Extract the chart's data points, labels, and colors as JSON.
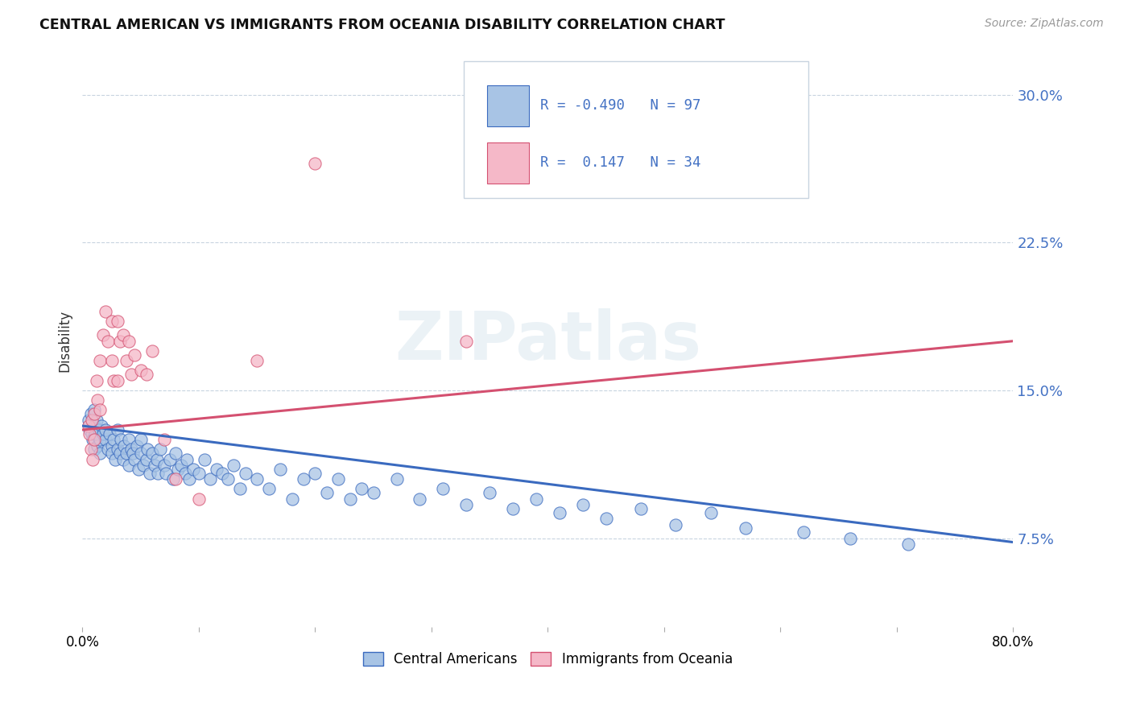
{
  "title": "CENTRAL AMERICAN VS IMMIGRANTS FROM OCEANIA DISABILITY CORRELATION CHART",
  "source": "Source: ZipAtlas.com",
  "ylabel": "Disability",
  "ytick_labels": [
    "7.5%",
    "15.0%",
    "22.5%",
    "30.0%"
  ],
  "ytick_values": [
    0.075,
    0.15,
    0.225,
    0.3
  ],
  "xlim": [
    0.0,
    0.8
  ],
  "ylim": [
    0.03,
    0.32
  ],
  "legend_blue_r": "-0.490",
  "legend_blue_n": "97",
  "legend_pink_r": "0.147",
  "legend_pink_n": "34",
  "blue_scatter_color": "#a8c4e5",
  "pink_scatter_color": "#f5b8c8",
  "blue_line_color": "#3a6abf",
  "pink_line_color": "#d45070",
  "watermark": "ZIPatlas",
  "blue_x": [
    0.005,
    0.006,
    0.007,
    0.008,
    0.009,
    0.01,
    0.01,
    0.01,
    0.011,
    0.012,
    0.013,
    0.014,
    0.015,
    0.015,
    0.016,
    0.018,
    0.02,
    0.02,
    0.022,
    0.023,
    0.025,
    0.025,
    0.027,
    0.028,
    0.03,
    0.03,
    0.032,
    0.033,
    0.035,
    0.036,
    0.038,
    0.04,
    0.04,
    0.042,
    0.043,
    0.045,
    0.047,
    0.048,
    0.05,
    0.05,
    0.052,
    0.055,
    0.056,
    0.058,
    0.06,
    0.062,
    0.064,
    0.065,
    0.067,
    0.07,
    0.072,
    0.075,
    0.078,
    0.08,
    0.082,
    0.085,
    0.088,
    0.09,
    0.092,
    0.095,
    0.1,
    0.105,
    0.11,
    0.115,
    0.12,
    0.125,
    0.13,
    0.135,
    0.14,
    0.15,
    0.16,
    0.17,
    0.18,
    0.19,
    0.2,
    0.21,
    0.22,
    0.23,
    0.24,
    0.25,
    0.27,
    0.29,
    0.31,
    0.33,
    0.35,
    0.37,
    0.39,
    0.41,
    0.43,
    0.45,
    0.48,
    0.51,
    0.54,
    0.57,
    0.62,
    0.66,
    0.71
  ],
  "blue_y": [
    0.135,
    0.13,
    0.138,
    0.128,
    0.125,
    0.132,
    0.14,
    0.12,
    0.128,
    0.135,
    0.122,
    0.13,
    0.125,
    0.118,
    0.132,
    0.128,
    0.125,
    0.13,
    0.12,
    0.128,
    0.122,
    0.118,
    0.125,
    0.115,
    0.13,
    0.12,
    0.118,
    0.125,
    0.115,
    0.122,
    0.118,
    0.125,
    0.112,
    0.12,
    0.118,
    0.115,
    0.122,
    0.11,
    0.118,
    0.125,
    0.112,
    0.115,
    0.12,
    0.108,
    0.118,
    0.112,
    0.115,
    0.108,
    0.12,
    0.112,
    0.108,
    0.115,
    0.105,
    0.118,
    0.11,
    0.112,
    0.108,
    0.115,
    0.105,
    0.11,
    0.108,
    0.115,
    0.105,
    0.11,
    0.108,
    0.105,
    0.112,
    0.1,
    0.108,
    0.105,
    0.1,
    0.11,
    0.095,
    0.105,
    0.108,
    0.098,
    0.105,
    0.095,
    0.1,
    0.098,
    0.105,
    0.095,
    0.1,
    0.092,
    0.098,
    0.09,
    0.095,
    0.088,
    0.092,
    0.085,
    0.09,
    0.082,
    0.088,
    0.08,
    0.078,
    0.075,
    0.072
  ],
  "pink_x": [
    0.005,
    0.006,
    0.007,
    0.008,
    0.009,
    0.01,
    0.01,
    0.012,
    0.013,
    0.015,
    0.015,
    0.018,
    0.02,
    0.022,
    0.025,
    0.025,
    0.027,
    0.03,
    0.03,
    0.032,
    0.035,
    0.038,
    0.04,
    0.042,
    0.045,
    0.05,
    0.055,
    0.06,
    0.07,
    0.08,
    0.1,
    0.15,
    0.2,
    0.33
  ],
  "pink_y": [
    0.132,
    0.128,
    0.12,
    0.135,
    0.115,
    0.138,
    0.125,
    0.155,
    0.145,
    0.165,
    0.14,
    0.178,
    0.19,
    0.175,
    0.185,
    0.165,
    0.155,
    0.185,
    0.155,
    0.175,
    0.178,
    0.165,
    0.175,
    0.158,
    0.168,
    0.16,
    0.158,
    0.17,
    0.125,
    0.105,
    0.095,
    0.165,
    0.265,
    0.175
  ],
  "blue_trend": [
    0.132,
    0.073
  ],
  "pink_trend": [
    0.13,
    0.175
  ]
}
